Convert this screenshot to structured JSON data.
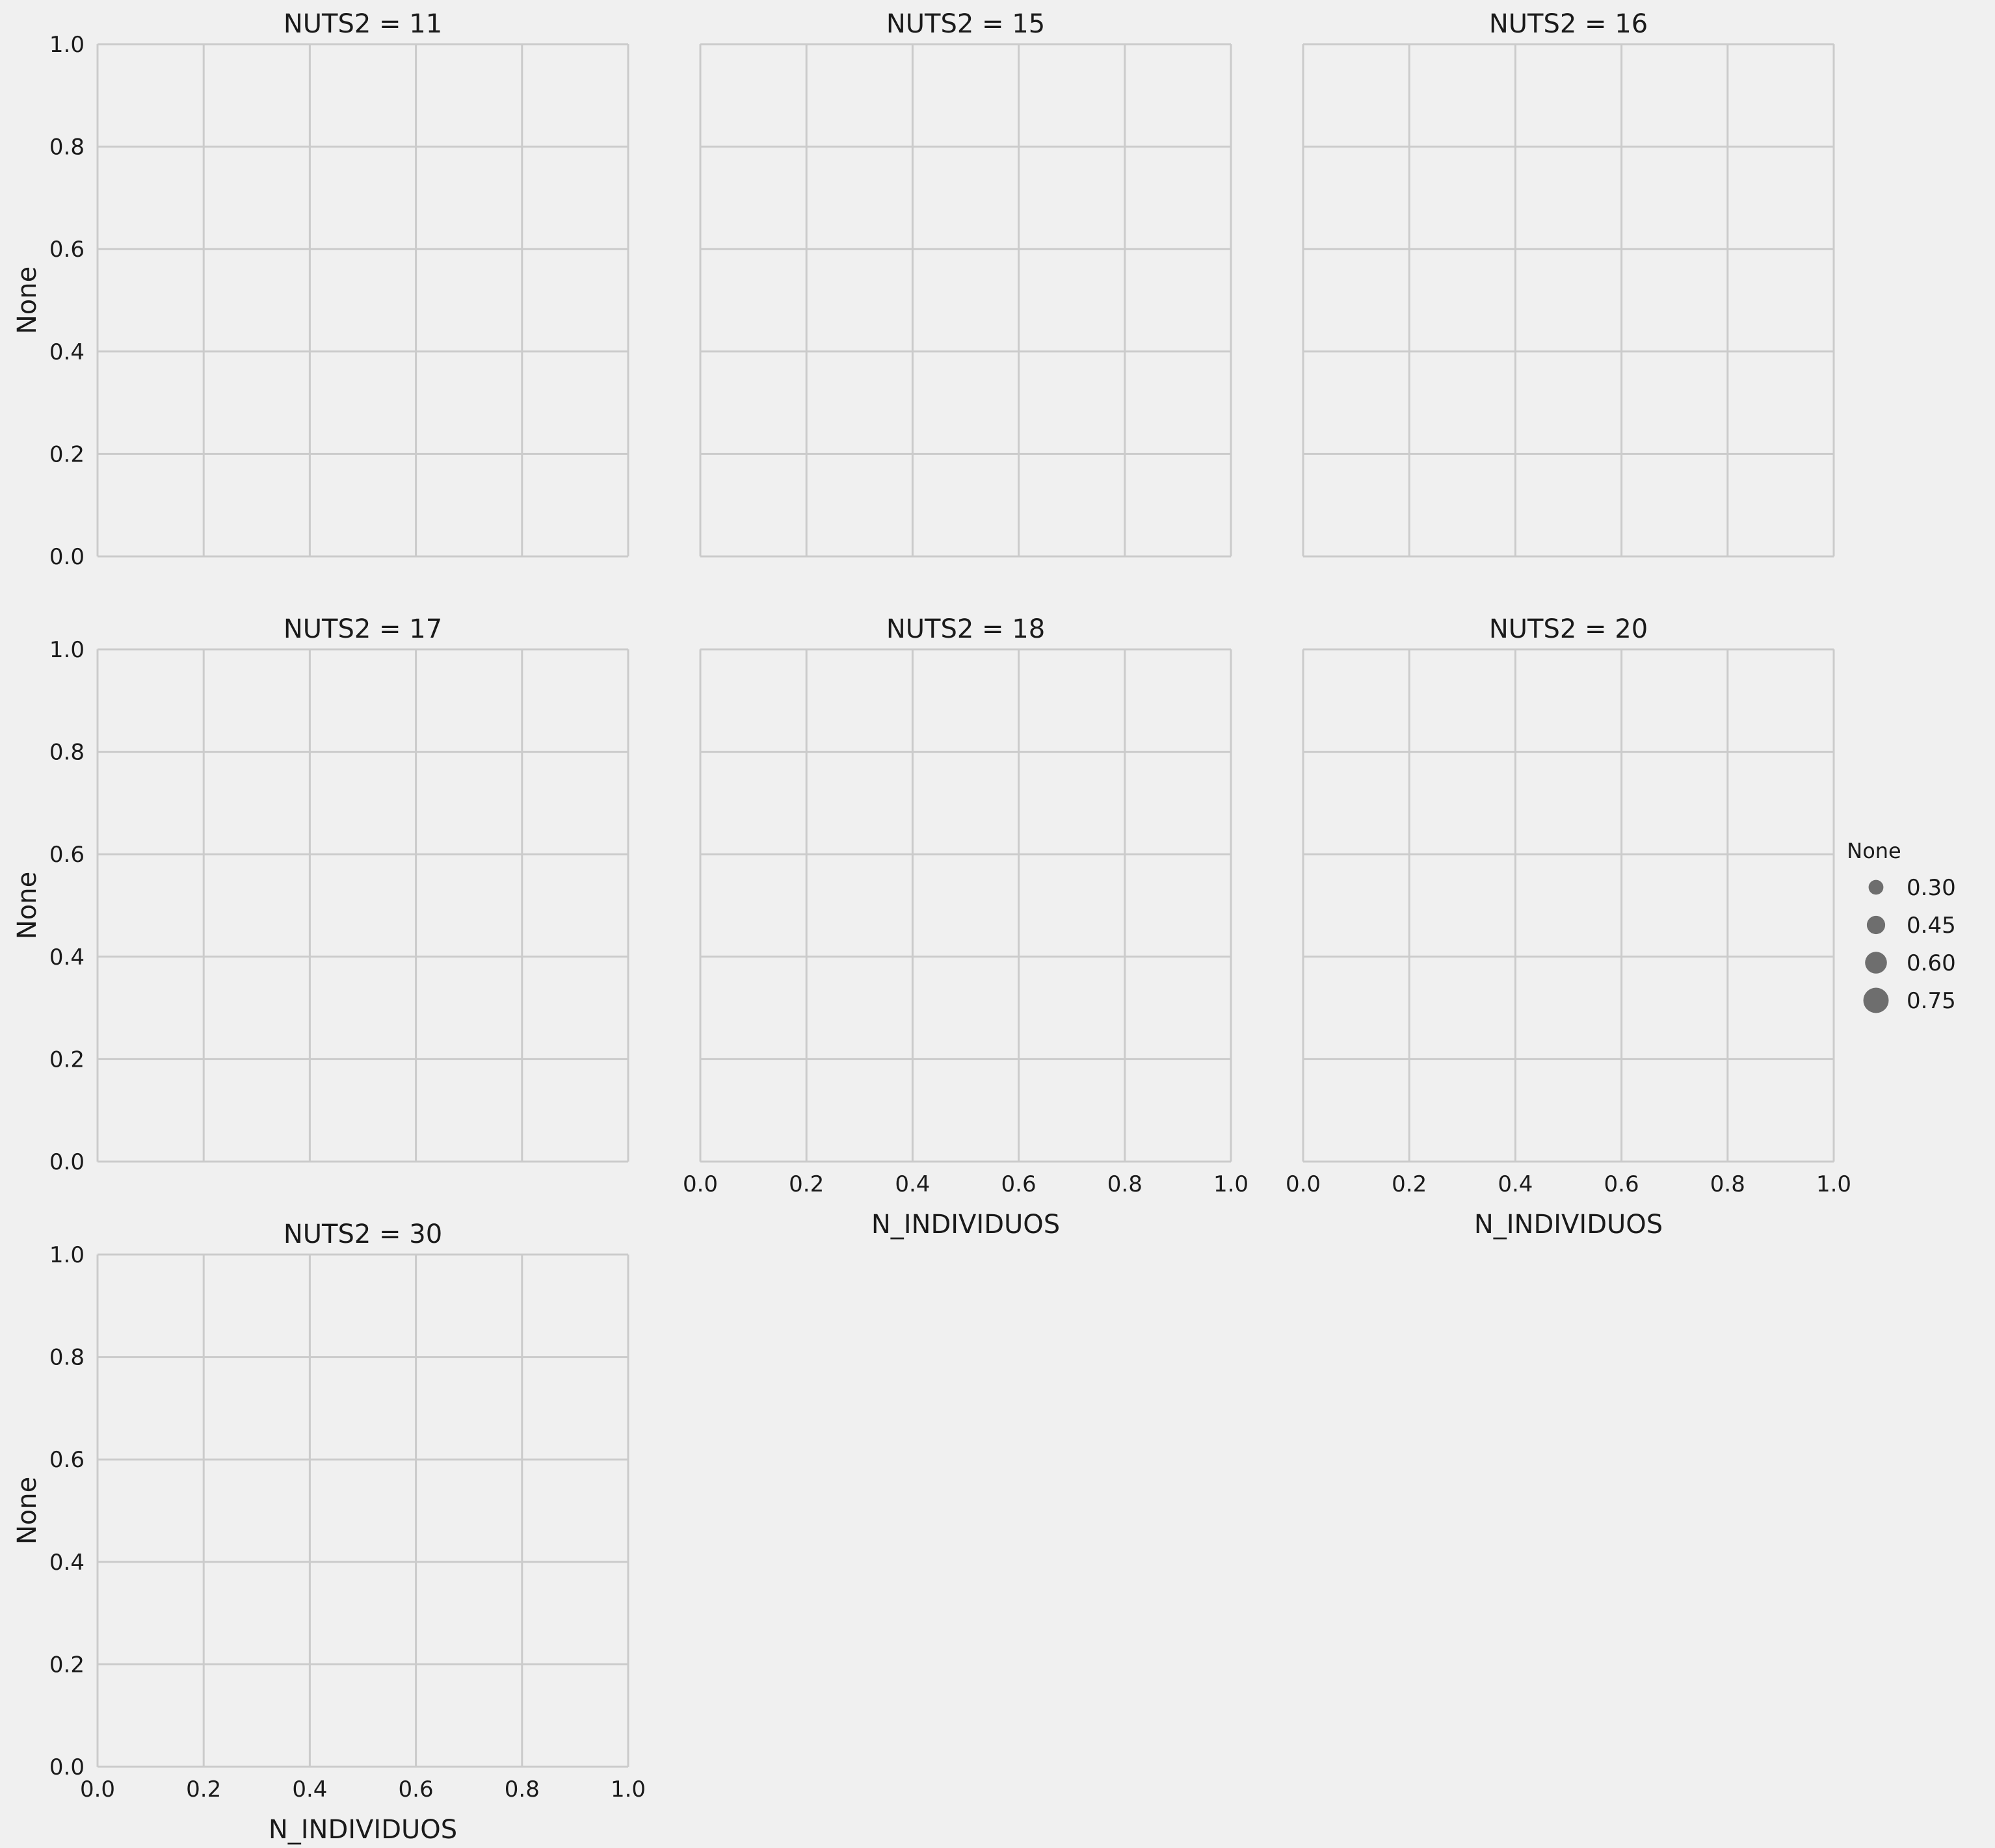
{
  "chart_data": {
    "type": "scatter",
    "layout": "facet-grid",
    "facet_column": "NUTS2",
    "x_label": "N_INDIVIDUOS",
    "y_label": "None",
    "xlim": [
      0,
      1
    ],
    "ylim": [
      0,
      1
    ],
    "x_ticks": [
      "0.0",
      "0.2",
      "0.4",
      "0.6",
      "0.8",
      "1.0"
    ],
    "y_ticks": [
      "0.0",
      "0.2",
      "0.4",
      "0.6",
      "0.8",
      "1.0"
    ],
    "grid": true,
    "background_color": "#f0f0f0",
    "grid_color": "#cbcbcb",
    "marker_color": "#6e6e6e",
    "panels": [
      {
        "title": "NUTS2 = 11",
        "points": []
      },
      {
        "title": "NUTS2 = 15",
        "points": []
      },
      {
        "title": "NUTS2 = 16",
        "points": []
      },
      {
        "title": "NUTS2 = 17",
        "points": []
      },
      {
        "title": "NUTS2 = 18",
        "points": []
      },
      {
        "title": "NUTS2 = 20",
        "points": []
      },
      {
        "title": "NUTS2 = 30",
        "points": []
      }
    ],
    "legend": {
      "title": "None",
      "placement": "right",
      "entries": [
        {
          "label": "0.30",
          "size_value": 0.3
        },
        {
          "label": "0.45",
          "size_value": 0.45
        },
        {
          "label": "0.60",
          "size_value": 0.6
        },
        {
          "label": "0.75",
          "size_value": 0.75
        }
      ]
    }
  }
}
